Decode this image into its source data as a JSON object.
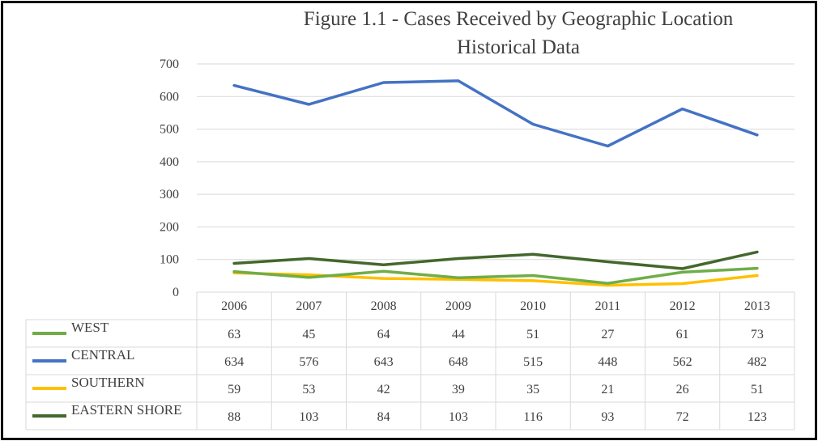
{
  "chart_data": {
    "type": "line",
    "title": "Figure 1.1 - Cases Received by Geographic Location",
    "subtitle": "Historical Data",
    "xlabel": "",
    "ylabel": "",
    "categories": [
      "2006",
      "2007",
      "2008",
      "2009",
      "2010",
      "2011",
      "2012",
      "2013"
    ],
    "ylim": [
      0,
      700
    ],
    "yticks": [
      0,
      100,
      200,
      300,
      400,
      500,
      600,
      700
    ],
    "grid": true,
    "legend": "data-table",
    "series": [
      {
        "name": "WEST",
        "color": "#70ad47",
        "values": [
          63,
          45,
          64,
          44,
          51,
          27,
          61,
          73
        ]
      },
      {
        "name": "CENTRAL",
        "color": "#4472c4",
        "values": [
          634,
          576,
          643,
          648,
          515,
          448,
          562,
          482
        ]
      },
      {
        "name": "SOUTHERN",
        "color": "#ffc000",
        "values": [
          59,
          53,
          42,
          39,
          35,
          21,
          26,
          51
        ]
      },
      {
        "name": "EASTERN SHORE",
        "color": "#43682b",
        "values": [
          88,
          103,
          84,
          103,
          116,
          93,
          72,
          123
        ]
      }
    ]
  }
}
